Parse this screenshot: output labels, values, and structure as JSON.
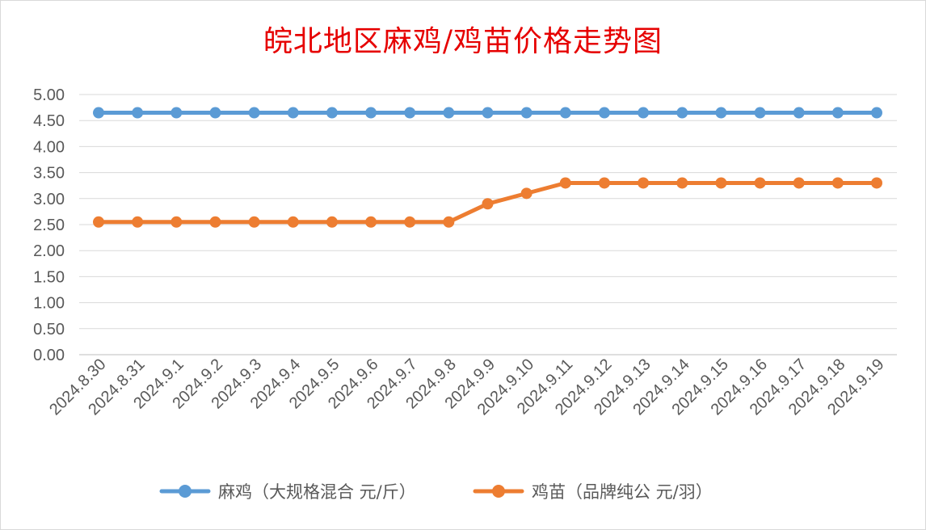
{
  "chart_data": {
    "type": "line",
    "title": "皖北地区麻鸡/鸡苗价格走势图",
    "categories": [
      "2024.8.30",
      "2024.8.31",
      "2024.9.1",
      "2024.9.2",
      "2024.9.3",
      "2024.9.4",
      "2024.9.5",
      "2024.9.6",
      "2024.9.7",
      "2024.9.8",
      "2024.9.9",
      "2024.9.10",
      "2024.9.11",
      "2024.9.12",
      "2024.9.13",
      "2024.9.14",
      "2024.9.15",
      "2024.9.16",
      "2024.9.17",
      "2024.9.18",
      "2024.9.19"
    ],
    "series": [
      {
        "name": "麻鸡（大规格混合 元/斤）",
        "color": "#5b9bd5",
        "values": [
          4.65,
          4.65,
          4.65,
          4.65,
          4.65,
          4.65,
          4.65,
          4.65,
          4.65,
          4.65,
          4.65,
          4.65,
          4.65,
          4.65,
          4.65,
          4.65,
          4.65,
          4.65,
          4.65,
          4.65,
          4.65
        ]
      },
      {
        "name": "鸡苗（品牌纯公 元/羽）",
        "color": "#ed7d31",
        "values": [
          2.55,
          2.55,
          2.55,
          2.55,
          2.55,
          2.55,
          2.55,
          2.55,
          2.55,
          2.55,
          2.9,
          3.1,
          3.3,
          3.3,
          3.3,
          3.3,
          3.3,
          3.3,
          3.3,
          3.3,
          3.3
        ]
      }
    ],
    "yticks": [
      "0.00",
      "0.50",
      "1.00",
      "1.50",
      "2.00",
      "2.50",
      "3.00",
      "3.50",
      "4.00",
      "4.50",
      "5.00"
    ],
    "ylim": [
      0,
      5
    ],
    "grid": true,
    "legend_position": "bottom"
  }
}
